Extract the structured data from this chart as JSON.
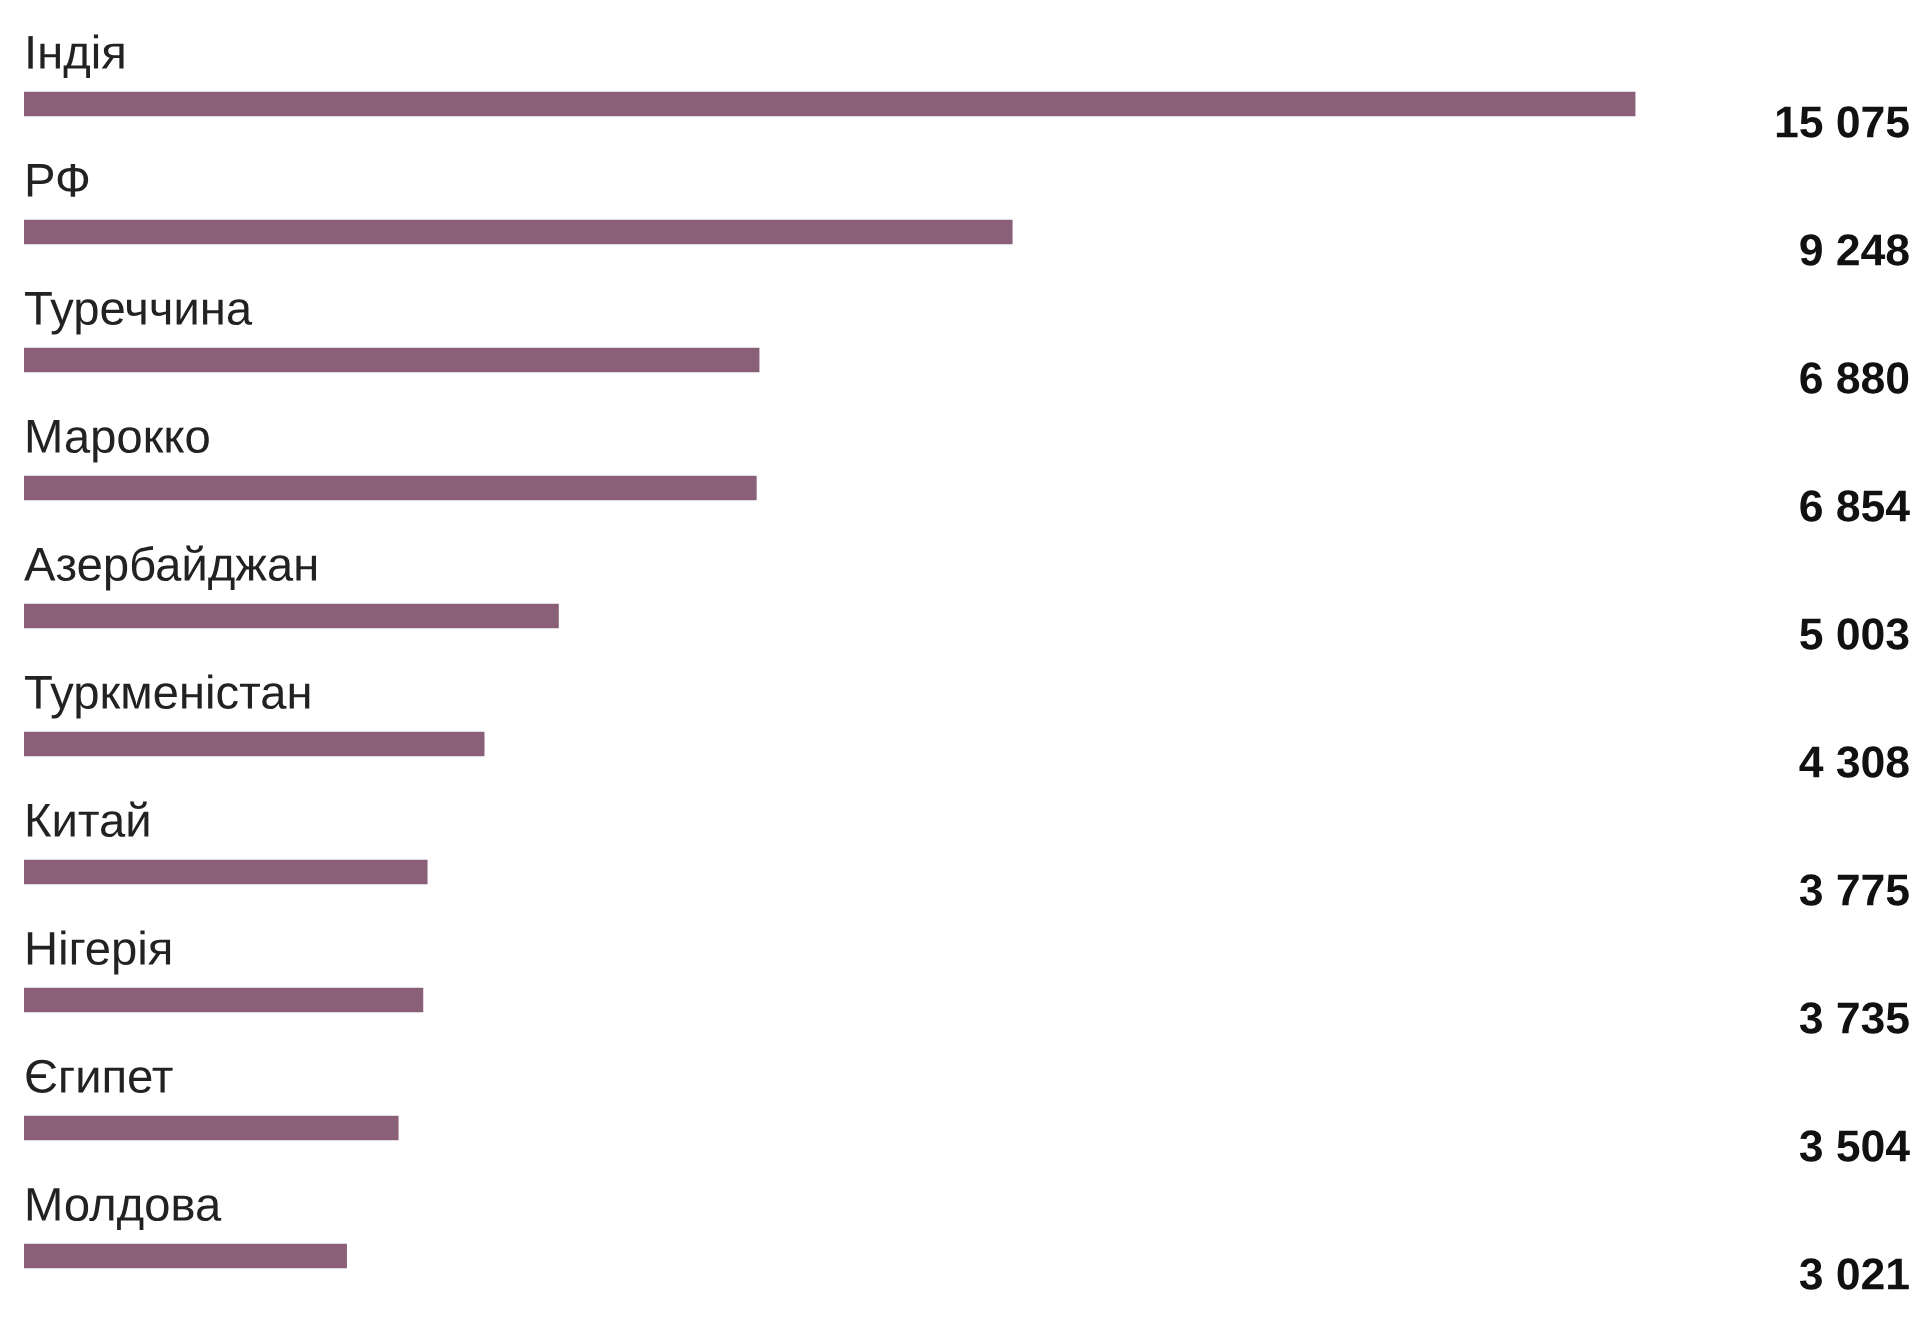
{
  "chart_data": {
    "type": "bar",
    "orientation": "horizontal",
    "categories": [
      "Індія",
      "РФ",
      "Туреччина",
      "Марокко",
      "Азербайджан",
      "Туркменістан",
      "Китай",
      "Нігерія",
      "Єгипет",
      "Молдова"
    ],
    "values": [
      15075,
      9248,
      6880,
      6854,
      5003,
      4308,
      3775,
      3735,
      3504,
      3021
    ],
    "value_labels": [
      "15 075",
      "9 248",
      "6 880",
      "6 854",
      "5 003",
      "4 308",
      "3 775",
      "3 735",
      "3 504",
      "3 021"
    ],
    "color": "#8a5f78"
  }
}
